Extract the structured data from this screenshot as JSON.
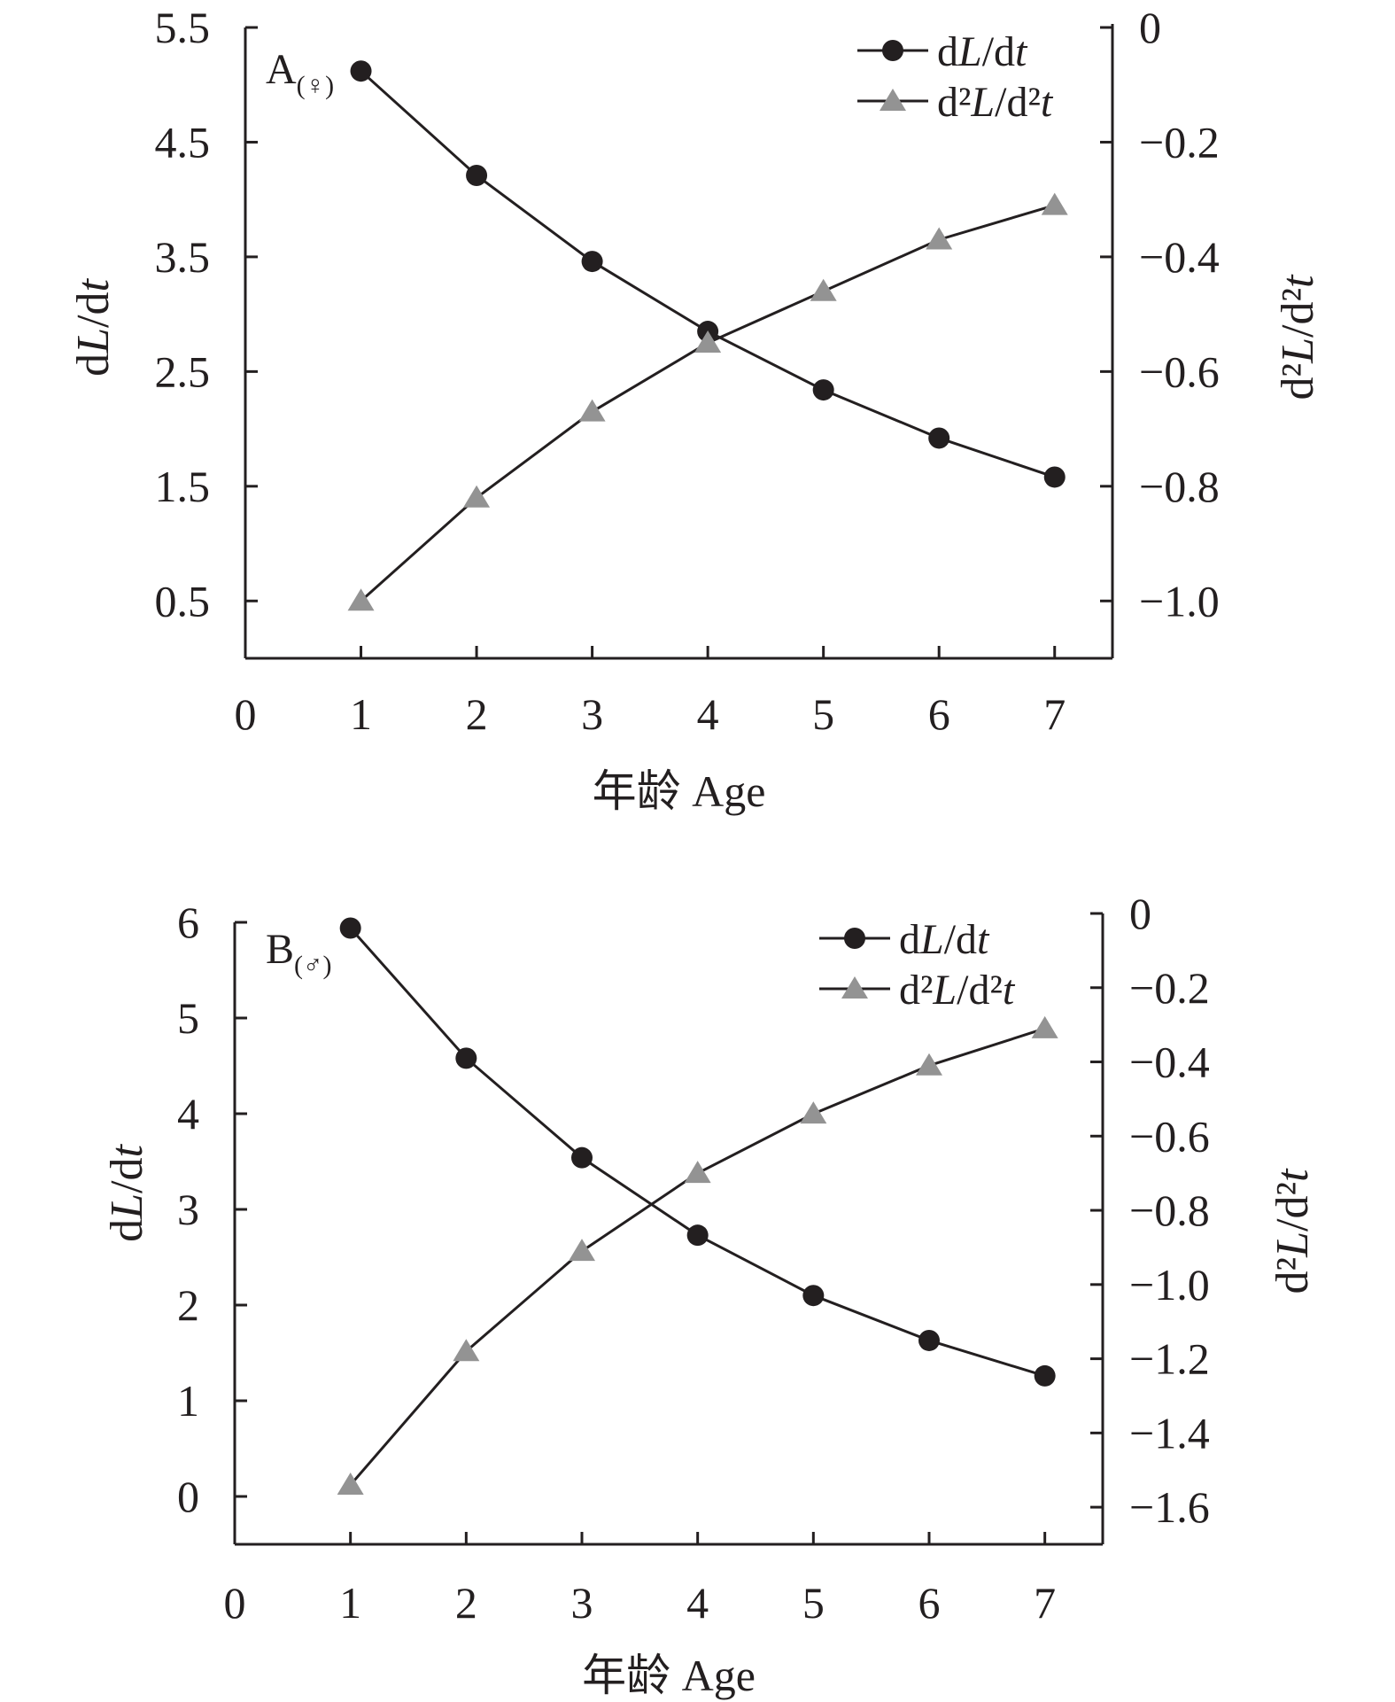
{
  "chart_data": [
    {
      "type": "line",
      "panel_label": "A",
      "panel_sex": "(♀)",
      "xlabel": "年龄 Age",
      "ylabel_left": "dL/dt",
      "ylabel_right": "d²L/d²t",
      "x": [
        1,
        2,
        3,
        4,
        5,
        6,
        7
      ],
      "xlim": [
        0,
        7.5
      ],
      "xticks": [
        0,
        1,
        2,
        3,
        4,
        5,
        6,
        7
      ],
      "ylim_left": [
        0,
        5.5
      ],
      "yticks_left": [
        "0.5",
        "1.5",
        "2.5",
        "3.5",
        "4.5",
        "5.5"
      ],
      "ylim_right": [
        -1.1,
        0
      ],
      "yticks_right": [
        "−1.0",
        "−0.8",
        "−0.6",
        "−0.4",
        "−0.2",
        "0"
      ],
      "legend_position": "top-right",
      "grid": false,
      "series": [
        {
          "name": "dL/dt",
          "axis": "left",
          "marker": "circle",
          "color": "#231f20",
          "values": [
            5.12,
            4.21,
            3.46,
            2.85,
            2.34,
            1.92,
            1.58
          ]
        },
        {
          "name": "d²L/d²t",
          "axis": "right",
          "marker": "triangle",
          "color": "#939393",
          "values": [
            -1.0,
            -0.82,
            -0.67,
            -0.55,
            -0.46,
            -0.37,
            -0.31
          ]
        }
      ]
    },
    {
      "type": "line",
      "panel_label": "B",
      "panel_sex": "(♂)",
      "xlabel": "年龄 Age",
      "ylabel_left": "dL/dt",
      "ylabel_right": "d²L/d²t",
      "x": [
        1,
        2,
        3,
        4,
        5,
        6,
        7
      ],
      "xlim": [
        0,
        7.5
      ],
      "xticks": [
        0,
        1,
        2,
        3,
        4,
        5,
        6,
        7
      ],
      "ylim_left": [
        -0.5,
        6
      ],
      "yticks_left": [
        "0",
        "1",
        "2",
        "3",
        "4",
        "5",
        "6"
      ],
      "ylim_right": [
        -1.7,
        0
      ],
      "yticks_right": [
        "−1.6",
        "−1.4",
        "−1.2",
        "−1.0",
        "−0.8",
        "−0.6",
        "−0.4",
        "−0.2",
        "0"
      ],
      "legend_position": "top-right",
      "grid": false,
      "series": [
        {
          "name": "dL/dt",
          "axis": "left",
          "marker": "circle",
          "color": "#231f20",
          "values": [
            5.94,
            4.58,
            3.54,
            2.73,
            2.1,
            1.63,
            1.26
          ]
        },
        {
          "name": "d²L/d²t",
          "axis": "right",
          "marker": "triangle",
          "color": "#939393",
          "values": [
            -1.54,
            -1.18,
            -0.91,
            -0.7,
            -0.54,
            -0.41,
            -0.31
          ]
        }
      ]
    }
  ]
}
